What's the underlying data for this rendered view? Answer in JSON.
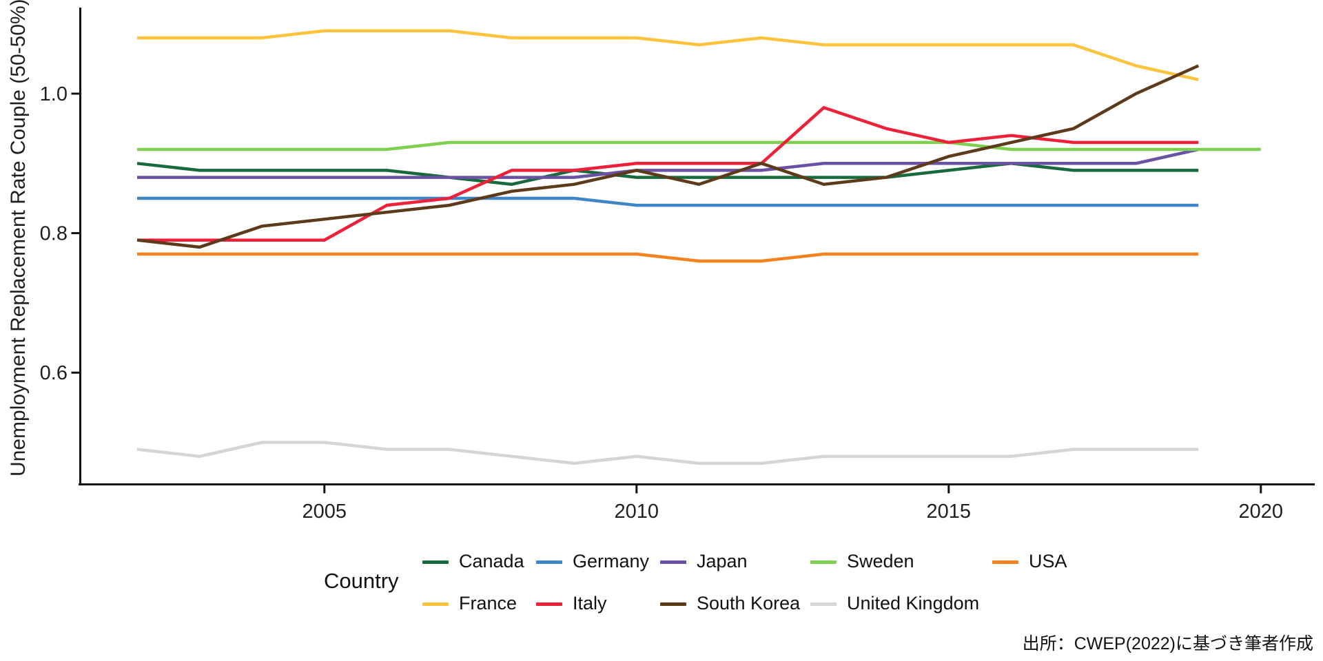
{
  "chart_data": {
    "type": "line",
    "title": "",
    "xlabel": "",
    "ylabel": "Unemployment Replacement Rate Couple (50-50%)",
    "x_range_years": [
      2002,
      2020
    ],
    "ylim": [
      0.43,
      1.12
    ],
    "grid": false,
    "legend_position": "bottom",
    "x_ticks": [
      {
        "v": 2005,
        "label": "2005"
      },
      {
        "v": 2010,
        "label": "2010"
      },
      {
        "v": 2015,
        "label": "2015"
      },
      {
        "v": 2020,
        "label": "2020"
      }
    ],
    "y_ticks": [
      {
        "v": 1.0,
        "label": "1.0"
      },
      {
        "v": 0.8,
        "label": "0.8"
      },
      {
        "v": 0.6,
        "label": "0.6"
      }
    ],
    "years": [
      2002,
      2003,
      2004,
      2005,
      2006,
      2007,
      2008,
      2009,
      2010,
      2011,
      2012,
      2013,
      2014,
      2015,
      2016,
      2017,
      2018,
      2019,
      2020
    ],
    "series": [
      {
        "name": "Canada",
        "color": "#186a3c",
        "legend_row": 0,
        "legend_col": 0,
        "values": [
          0.9,
          0.89,
          0.89,
          0.89,
          0.89,
          0.88,
          0.87,
          0.89,
          0.88,
          0.88,
          0.88,
          0.88,
          0.88,
          0.89,
          0.9,
          0.89,
          0.89,
          0.89,
          null
        ]
      },
      {
        "name": "Germany",
        "color": "#3e86c6",
        "legend_row": 0,
        "legend_col": 1,
        "values": [
          0.85,
          0.85,
          0.85,
          0.85,
          0.85,
          0.85,
          0.85,
          0.85,
          0.84,
          0.84,
          0.84,
          0.84,
          0.84,
          0.84,
          0.84,
          0.84,
          0.84,
          0.84,
          null
        ]
      },
      {
        "name": "Japan",
        "color": "#6a51a3",
        "legend_row": 0,
        "legend_col": 2,
        "values": [
          0.88,
          0.88,
          0.88,
          0.88,
          0.88,
          0.88,
          0.88,
          0.88,
          0.89,
          0.89,
          0.89,
          0.9,
          0.9,
          0.9,
          0.9,
          0.9,
          0.9,
          0.92,
          null
        ]
      },
      {
        "name": "Sweden",
        "color": "#7ed04e",
        "legend_row": 0,
        "legend_col": 3,
        "values": [
          0.92,
          0.92,
          0.92,
          0.92,
          0.92,
          0.93,
          0.93,
          0.93,
          0.93,
          0.93,
          0.93,
          0.93,
          0.93,
          0.93,
          0.92,
          0.92,
          0.92,
          0.92,
          0.92
        ]
      },
      {
        "name": "USA",
        "color": "#f5821e",
        "legend_row": 0,
        "legend_col": 4,
        "values": [
          0.77,
          0.77,
          0.77,
          0.77,
          0.77,
          0.77,
          0.77,
          0.77,
          0.77,
          0.76,
          0.76,
          0.77,
          0.77,
          0.77,
          0.77,
          0.77,
          0.77,
          0.77,
          null
        ]
      },
      {
        "name": "France",
        "color": "#fdc33c",
        "legend_row": 1,
        "legend_col": 0,
        "values": [
          1.08,
          1.08,
          1.08,
          1.09,
          1.09,
          1.09,
          1.08,
          1.08,
          1.08,
          1.07,
          1.08,
          1.07,
          1.07,
          1.07,
          1.07,
          1.07,
          1.04,
          1.02,
          null
        ]
      },
      {
        "name": "Italy",
        "color": "#ee2139",
        "legend_row": 1,
        "legend_col": 1,
        "values": [
          0.79,
          0.79,
          0.79,
          0.79,
          0.84,
          0.85,
          0.89,
          0.89,
          0.9,
          0.9,
          0.9,
          0.98,
          0.95,
          0.93,
          0.94,
          0.93,
          0.93,
          0.93,
          null
        ]
      },
      {
        "name": "South Korea",
        "color": "#5d3a1a",
        "legend_row": 1,
        "legend_col": 2,
        "values": [
          0.79,
          0.78,
          0.81,
          0.82,
          0.83,
          0.84,
          0.86,
          0.87,
          0.89,
          0.87,
          0.9,
          0.87,
          0.88,
          0.91,
          0.93,
          0.95,
          1.0,
          1.04,
          null
        ]
      },
      {
        "name": "United Kingdom",
        "color": "#d5d5d5",
        "legend_row": 1,
        "legend_col": 3,
        "values": [
          0.49,
          0.48,
          0.5,
          0.5,
          0.49,
          0.49,
          0.48,
          0.47,
          0.48,
          0.47,
          0.47,
          0.48,
          0.48,
          0.48,
          0.48,
          0.49,
          0.49,
          0.49,
          null
        ]
      }
    ]
  },
  "legend": {
    "title": "Country"
  },
  "source_note": "出所：CWEP(2022)に基づき筆者作成"
}
